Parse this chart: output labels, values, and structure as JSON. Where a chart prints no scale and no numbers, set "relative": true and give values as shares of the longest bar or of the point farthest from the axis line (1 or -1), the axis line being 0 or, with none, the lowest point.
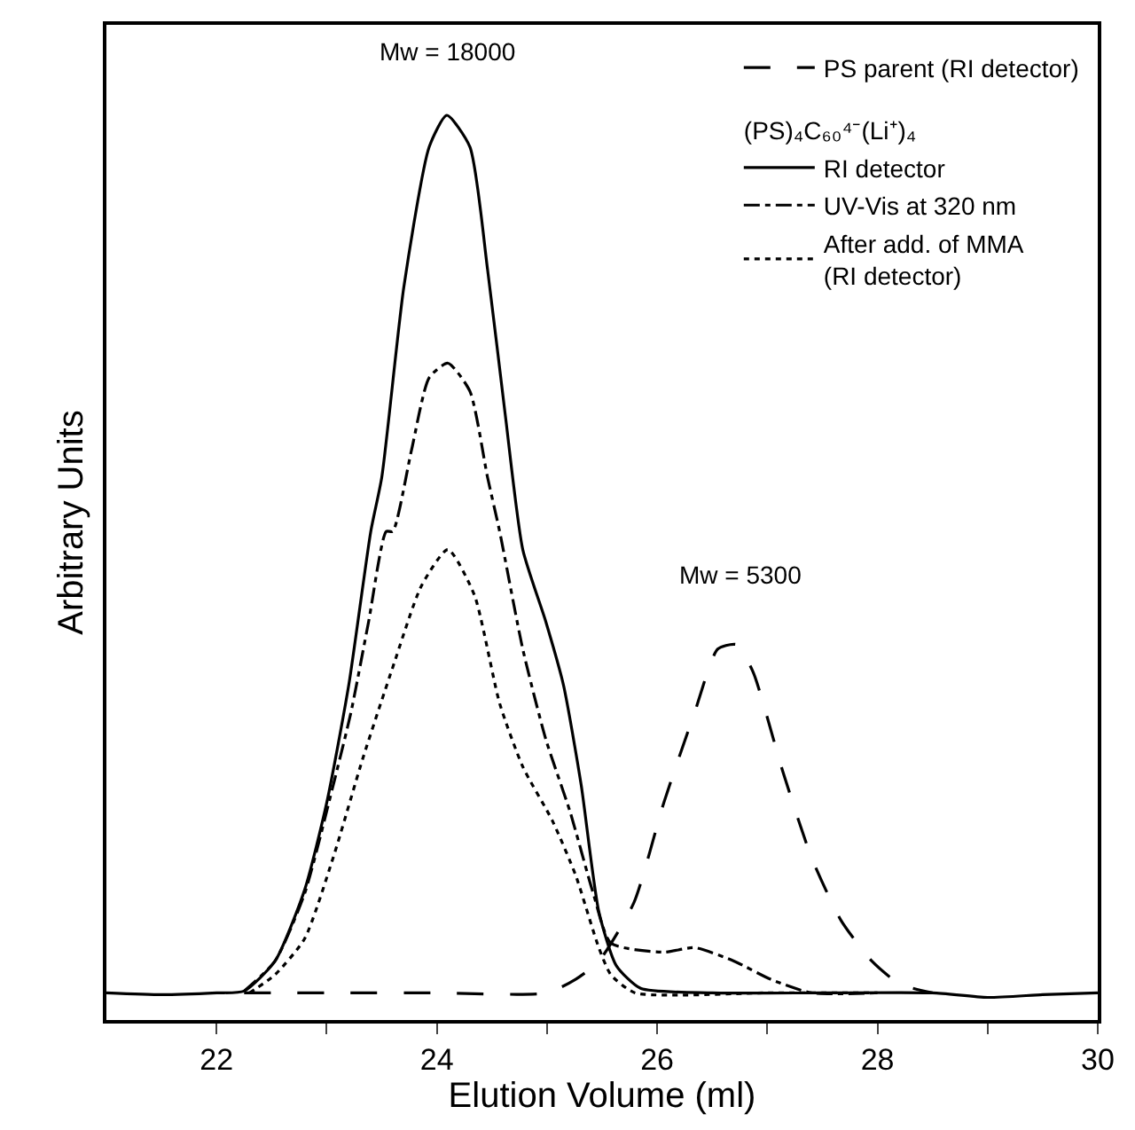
{
  "chart_data": {
    "type": "line",
    "relative": true,
    "xlabel": "Elution Volume (ml)",
    "ylabel": "Arbitrary Units",
    "legend_title": "(PS)₄C₆₀⁴⁻(Li⁺)₄",
    "legend": "top right",
    "xlim": [
      21,
      30
    ],
    "xticks": [
      22,
      {
        "value": 23,
        "label": null
      },
      24,
      {
        "value": 25,
        "label": null
      },
      26,
      {
        "value": 27,
        "label": null
      },
      28,
      {
        "value": 29,
        "label": null
      },
      30
    ],
    "annotations": [
      "Mw = 18000",
      "Mw = 5300"
    ],
    "series": [
      {
        "name": "PS parent (RI detector)",
        "color": "#000000",
        "line_style": "dashed",
        "x": [
          22.25,
          23.0,
          24.0,
          25.0,
          25.26,
          25.47,
          25.79,
          26.06,
          26.34,
          26.55,
          26.72,
          26.87,
          27.14,
          27.4,
          27.67,
          27.95,
          28.2,
          28.5
        ],
        "values": [
          0.03,
          0.03,
          0.03,
          0.03,
          0.045,
          0.065,
          0.13,
          0.24,
          0.34,
          0.41,
          0.415,
          0.385,
          0.275,
          0.18,
          0.11,
          0.065,
          0.04,
          0.03
        ]
      },
      {
        "name": "RI detector",
        "color": "#000000",
        "line_style": "solid",
        "x": [
          21.0,
          21.5,
          22.0,
          22.25,
          22.53,
          22.8,
          23.0,
          23.2,
          23.4,
          23.5,
          23.7,
          23.93,
          24.09,
          24.3,
          24.46,
          24.62,
          24.78,
          24.99,
          25.15,
          25.31,
          25.47,
          25.63,
          25.85,
          26.5,
          27.5,
          28.5,
          29.0,
          29.5,
          30.0
        ],
        "values": [
          0.03,
          0.028,
          0.03,
          0.032,
          0.065,
          0.144,
          0.24,
          0.37,
          0.54,
          0.6,
          0.81,
          0.965,
          1.0,
          0.965,
          0.83,
          0.67,
          0.52,
          0.44,
          0.37,
          0.26,
          0.12,
          0.06,
          0.035,
          0.03,
          0.03,
          0.03,
          0.025,
          0.028,
          0.03
        ]
      },
      {
        "name": "UV-Vis at 320 nm",
        "color": "#000000",
        "line_style": "dashdot",
        "x": [
          22.25,
          22.53,
          22.8,
          23.06,
          23.22,
          23.38,
          23.54,
          23.6,
          23.77,
          23.93,
          24.1,
          24.3,
          24.46,
          24.57,
          24.78,
          24.99,
          25.21,
          25.42,
          25.58,
          26.06,
          26.34,
          26.7,
          27.03,
          27.4,
          28.0
        ],
        "values": [
          0.032,
          0.065,
          0.14,
          0.26,
          0.34,
          0.44,
          0.54,
          0.54,
          0.63,
          0.71,
          0.726,
          0.695,
          0.6,
          0.54,
          0.41,
          0.31,
          0.23,
          0.14,
          0.085,
          0.075,
          0.08,
          0.065,
          0.045,
          0.03,
          0.03
        ]
      },
      {
        "name": "After add. of MMA\n(RI detector)",
        "color": "#000000",
        "line_style": "dotted",
        "x": [
          22.3,
          22.53,
          22.8,
          23.06,
          23.33,
          23.6,
          23.86,
          24.1,
          24.34,
          24.57,
          24.78,
          25.05,
          25.26,
          25.47,
          25.58,
          25.8,
          27.0,
          28.0
        ],
        "values": [
          0.03,
          0.05,
          0.09,
          0.18,
          0.29,
          0.39,
          0.48,
          0.52,
          0.47,
          0.35,
          0.28,
          0.22,
          0.16,
          0.08,
          0.05,
          0.03,
          0.03,
          0.03
        ]
      }
    ]
  }
}
